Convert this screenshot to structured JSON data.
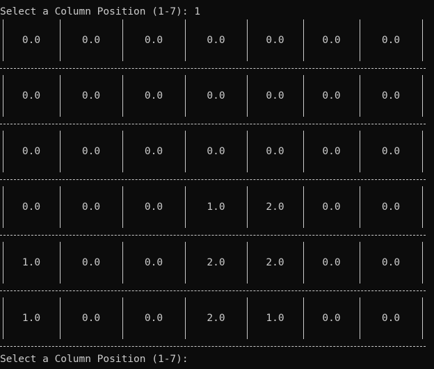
{
  "terminal": {
    "prompt_top": "Select a Column Position (1-7):",
    "input_top": "1",
    "prompt_bottom": "Select a Column Position (1-7):",
    "input_bottom": ""
  },
  "board": {
    "rows": [
      [
        "0.0",
        "0.0",
        "0.0",
        "0.0",
        "0.0",
        "0.0",
        "0.0"
      ],
      [
        "0.0",
        "0.0",
        "0.0",
        "0.0",
        "0.0",
        "0.0",
        "0.0"
      ],
      [
        "0.0",
        "0.0",
        "0.0",
        "0.0",
        "0.0",
        "0.0",
        "0.0"
      ],
      [
        "0.0",
        "0.0",
        "0.0",
        "1.0",
        "2.0",
        "0.0",
        "0.0"
      ],
      [
        "1.0",
        "0.0",
        "0.0",
        "2.0",
        "2.0",
        "0.0",
        "0.0"
      ],
      [
        "1.0",
        "0.0",
        "0.0",
        "2.0",
        "1.0",
        "0.0",
        "0.0"
      ]
    ]
  }
}
